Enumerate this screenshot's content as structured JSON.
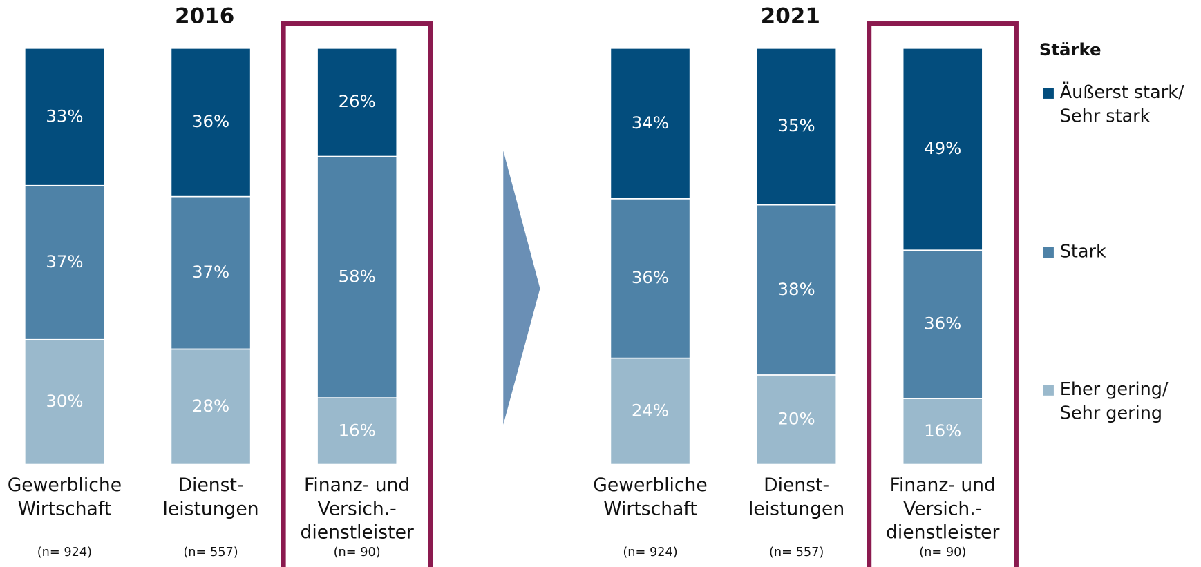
{
  "chart_data": [
    {
      "type": "bar",
      "stacked": true,
      "title": "2016",
      "categories": [
        [
          "Gewerbliche",
          "Wirtschaft"
        ],
        [
          "Dienst-",
          "leistungen"
        ],
        [
          "Finanz- und",
          "Versich.-",
          "dienstleister"
        ]
      ],
      "notes": [
        "(n= 924)",
        "(n= 557)",
        "(n= 90)"
      ],
      "highlight": 2,
      "series": [
        {
          "values": [
            33,
            36,
            26
          ],
          "value_labels": [
            "33%",
            "36%",
            "26%"
          ]
        },
        {
          "values": [
            37,
            37,
            58
          ],
          "value_labels": [
            "37%",
            "37%",
            "58%"
          ]
        },
        {
          "values": [
            30,
            28,
            16
          ],
          "value_labels": [
            "30%",
            "28%",
            "16%"
          ]
        }
      ]
    },
    {
      "type": "bar",
      "stacked": true,
      "title": "2021",
      "categories": [
        [
          "Gewerbliche",
          "Wirtschaft"
        ],
        [
          "Dienst-",
          "leistungen"
        ],
        [
          "Finanz- und",
          "Versich.-",
          "dienstleister"
        ]
      ],
      "notes": [
        "(n= 924)",
        "(n= 557)",
        "(n= 90)"
      ],
      "highlight": 2,
      "series": [
        {
          "values": [
            34,
            35,
            49
          ],
          "value_labels": [
            "34%",
            "35%",
            "49%"
          ]
        },
        {
          "values": [
            36,
            38,
            36
          ],
          "value_labels": [
            "36%",
            "38%",
            "36%"
          ]
        },
        {
          "values": [
            24,
            20,
            16
          ],
          "value_labels": [
            "24%",
            "20%",
            "16%"
          ]
        }
      ]
    }
  ],
  "legend": {
    "title": "Stärke",
    "items": [
      {
        "name": [
          "Äußerst stark/",
          "Sehr stark"
        ],
        "color": "#034d7d"
      },
      {
        "name": [
          "Stark"
        ],
        "color": "#4e82a7"
      },
      {
        "name": [
          "Eher gering/",
          "Sehr gering"
        ],
        "color": "#9ab9cc"
      }
    ]
  },
  "highlight_color": "#8b1a4f"
}
